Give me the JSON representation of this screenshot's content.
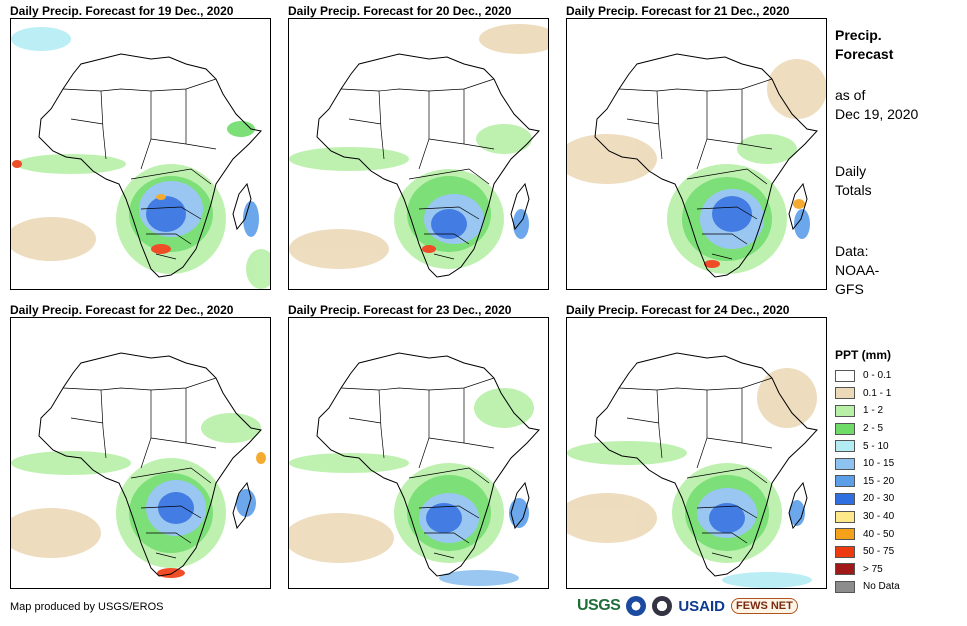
{
  "panels": [
    {
      "title": "Daily Precip. Forecast for 19 Dec., 2020"
    },
    {
      "title": "Daily Precip. Forecast for 20 Dec., 2020"
    },
    {
      "title": "Daily Precip. Forecast for 21 Dec., 2020"
    },
    {
      "title": "Daily Precip. Forecast for 22 Dec., 2020"
    },
    {
      "title": "Daily Precip. Forecast for 23 Dec., 2020"
    },
    {
      "title": "Daily Precip. Forecast for 24 Dec., 2020"
    }
  ],
  "side": {
    "title_line1": "Precip.",
    "title_line2": "Forecast",
    "asof_line1": "as of",
    "asof_line2": "Dec 19, 2020",
    "totals_line1": "Daily",
    "totals_line2": "Totals",
    "data_line1": "Data:",
    "data_line2": "NOAA-",
    "data_line3": "GFS"
  },
  "legend": {
    "title": "PPT (mm)",
    "items": [
      {
        "label": "0 - 0.1",
        "color": "#ffffff"
      },
      {
        "label": "0.1 - 1",
        "color": "#ecd9b8"
      },
      {
        "label": "1 - 2",
        "color": "#b8f0a8"
      },
      {
        "label": "2 - 5",
        "color": "#6fdc6a"
      },
      {
        "label": "5 - 10",
        "color": "#b4ecf4"
      },
      {
        "label": "10 - 15",
        "color": "#8ec2f0"
      },
      {
        "label": "15 - 20",
        "color": "#5c9ee8"
      },
      {
        "label": "20 - 30",
        "color": "#2f6fe0"
      },
      {
        "label": "30 - 40",
        "color": "#fde88a"
      },
      {
        "label": "40 - 50",
        "color": "#f5a21a"
      },
      {
        "label": "50 - 75",
        "color": "#ee3a10"
      },
      {
        "label": "> 75",
        "color": "#a01818"
      },
      {
        "label": "No Data",
        "color": "#8c8c8c"
      }
    ]
  },
  "credit": "Map produced by USGS/EROS",
  "logos": {
    "usgs": "USGS",
    "usaid": "USAID",
    "fews": "FEWS NET"
  }
}
